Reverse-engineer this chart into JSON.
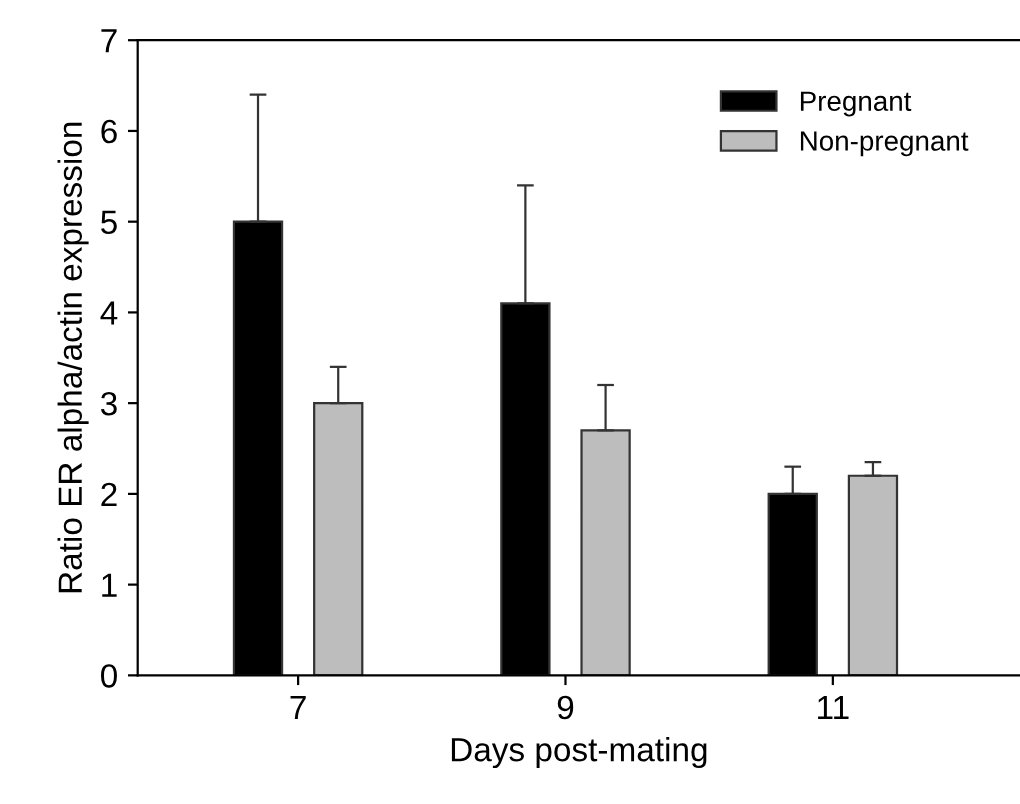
{
  "chart_data": {
    "type": "bar",
    "xlabel": "Days post-mating",
    "ylabel": "Ratio ER alpha/actin expression",
    "categories": [
      "7",
      "9",
      "11"
    ],
    "series": [
      {
        "name": "Pregnant",
        "color": "#000000",
        "values": [
          5.0,
          4.1,
          2.0
        ],
        "errors": [
          [
            5.0,
            6.4
          ],
          [
            4.1,
            5.4
          ],
          [
            2.0,
            2.3
          ]
        ]
      },
      {
        "name": "Non-pregnant",
        "color": "#bdbdbd",
        "values": [
          3.0,
          2.7,
          2.2
        ],
        "errors": [
          [
            3.0,
            3.4
          ],
          [
            2.7,
            3.2
          ],
          [
            2.2,
            2.35
          ]
        ]
      }
    ],
    "ylim": [
      0,
      7
    ],
    "yticks": [
      0,
      1,
      2,
      3,
      4,
      5,
      6,
      7
    ],
    "grid": false,
    "legend": "top right"
  }
}
